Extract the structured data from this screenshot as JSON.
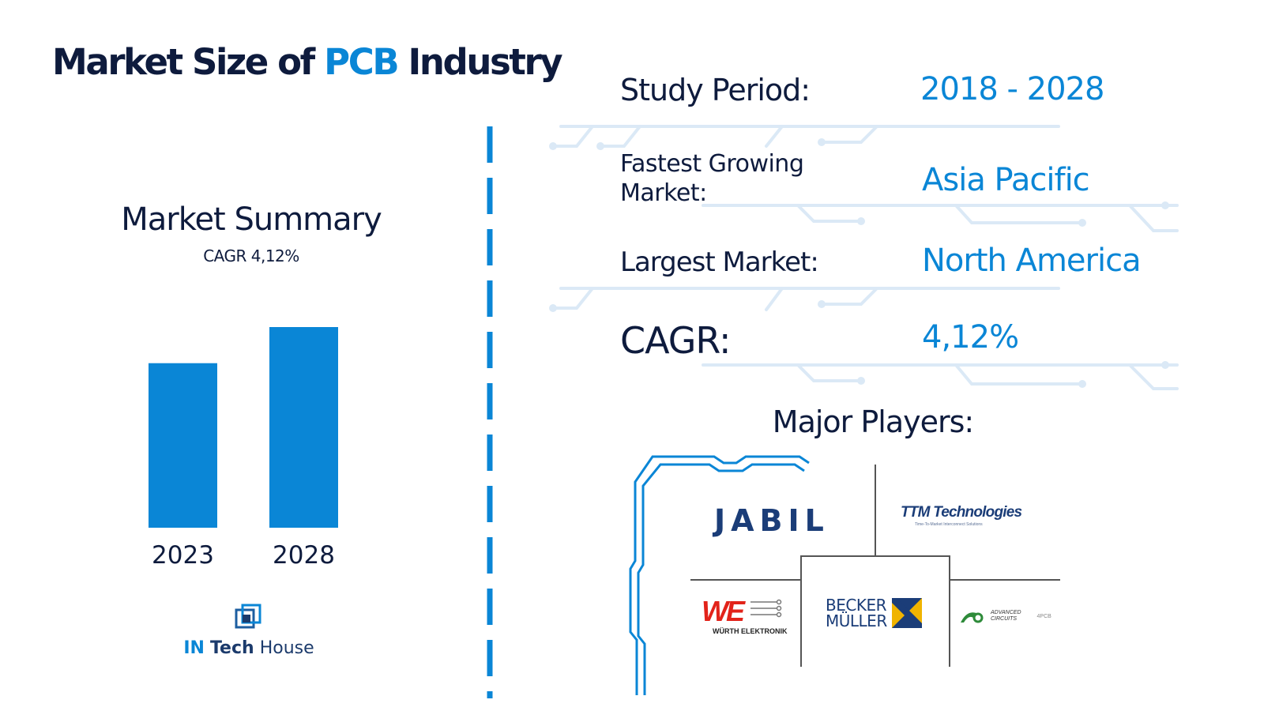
{
  "title": {
    "part1": "Market Size of",
    "accent": "PCB",
    "part2": "Industry"
  },
  "summary": {
    "heading": "Market Summary",
    "cagr_text": "CAGR 4,12%"
  },
  "chart_data": {
    "type": "bar",
    "categories": [
      "2023",
      "2028"
    ],
    "values": [
      0.82,
      1.0
    ],
    "color": "#0a86d6"
  },
  "brand": {
    "name_part1": "IN",
    "name_part2": "Tech",
    "name_part3": "House",
    "icon": "square-logo-icon"
  },
  "info": {
    "study_period": {
      "label": "Study Period:",
      "value": "2018 - 2028"
    },
    "fastest_growing": {
      "label_line1": "Fastest Growing",
      "label_line2": "Market:",
      "value": "Asia Pacific"
    },
    "largest_market": {
      "label": "Largest Market:",
      "value": "North America"
    },
    "cagr": {
      "label": "CAGR:",
      "value": "4,12%"
    }
  },
  "players": {
    "heading": "Major Players:",
    "jabil": "JABIL",
    "ttm": {
      "name": "TTM Technologies",
      "tagline": "Time-To-Market Interconnect Solutions"
    },
    "wurth": {
      "mark": "WE",
      "name": "WÜRTH ELEKTRONIK"
    },
    "becker": {
      "line1": "BECKER",
      "line2": "MÜLLER"
    },
    "advanced": {
      "line1": "ADVANCED",
      "line2": "CIRCUITS",
      "suffix": "4PCB"
    }
  },
  "colors": {
    "navy": "#0e1b3d",
    "accent": "#0a86d6",
    "circuit": "#dbe9f6"
  }
}
